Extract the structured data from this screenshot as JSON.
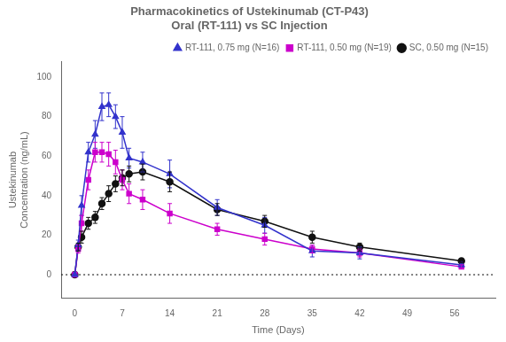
{
  "chart_data": {
    "type": "line",
    "title": "Pharmacokinetics of Ustekinumab (CT-P43)\nOral (RT-111) vs SC Injection",
    "x_label": "Time (Days)",
    "y_label": "Ustekinumab\nConcentration (ng/mL)",
    "xlim": [
      -2,
      62
    ],
    "ylim": [
      -12,
      108
    ],
    "xticks": [
      0,
      7,
      14,
      21,
      28,
      35,
      42,
      49,
      56
    ],
    "yticks": [
      0,
      20,
      40,
      60,
      80,
      100
    ],
    "grid": false,
    "legend": "upper right",
    "hline": 0,
    "x": [
      0,
      0.5,
      1,
      2,
      3,
      4,
      5,
      6,
      7,
      8,
      10,
      14,
      21,
      28,
      35,
      42,
      57
    ],
    "series": [
      {
        "name": "RT-111, 0.75 mg (N=16)",
        "color": "#3333cc",
        "marker": "triangle",
        "values": [
          0,
          15,
          35,
          62,
          71,
          85,
          86,
          80,
          72,
          59,
          57,
          51,
          34,
          25,
          12,
          11,
          5
        ],
        "yerr": [
          0,
          2.5,
          5,
          5,
          7,
          7,
          6,
          6,
          8,
          5,
          5,
          7,
          4,
          4,
          3,
          3,
          1
        ]
      },
      {
        "name": "RT-111, 0.50 mg (N=19)",
        "color": "#cc00cc",
        "marker": "square",
        "values": [
          0,
          13,
          26,
          48,
          62,
          62,
          61,
          57,
          48,
          41,
          38,
          31,
          23,
          18,
          13,
          11,
          4
        ],
        "yerr": [
          0,
          2,
          4,
          5,
          5,
          5,
          6,
          6,
          5,
          5,
          5,
          5,
          3,
          3,
          2,
          2,
          1
        ]
      },
      {
        "name": "SC, 0.50 mg (N=15)",
        "color": "#111111",
        "marker": "circle",
        "values": [
          0,
          14,
          19,
          26,
          29,
          36,
          41,
          46,
          49,
          51,
          52,
          47,
          33,
          27,
          19,
          14,
          7
        ],
        "yerr": [
          0,
          2,
          3,
          3,
          3,
          3,
          4,
          4,
          4,
          4,
          4,
          5,
          3,
          3,
          3,
          2,
          1
        ]
      }
    ]
  }
}
